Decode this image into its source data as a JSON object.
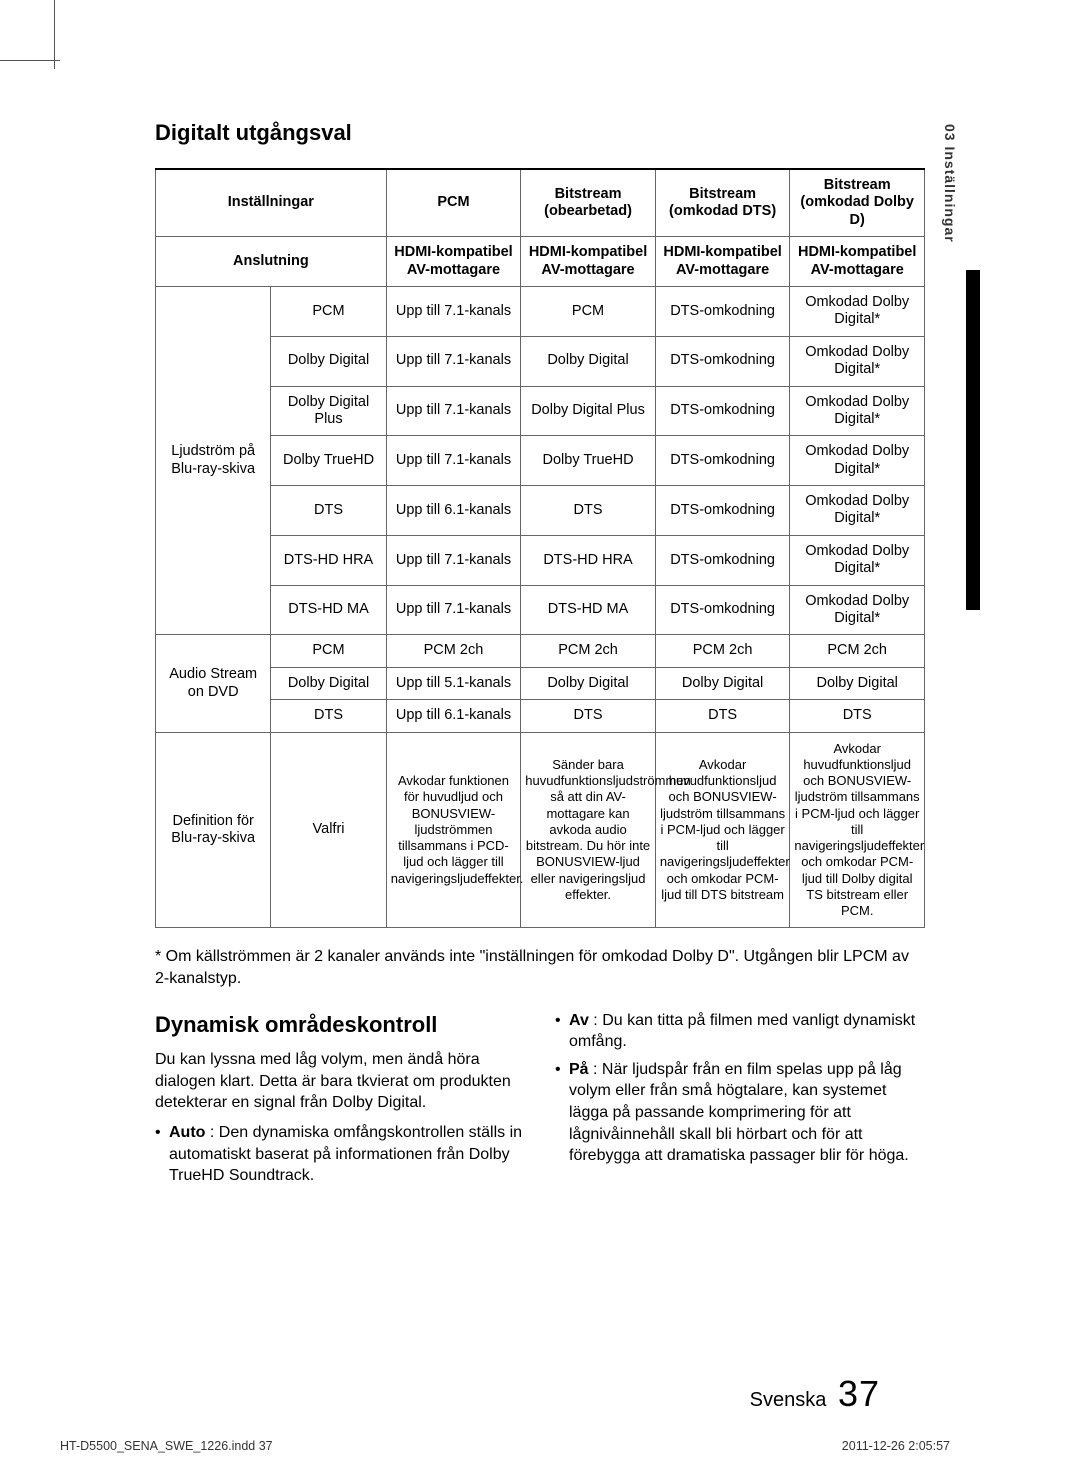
{
  "side_tab": "03   Inställningar",
  "section_title": "Digitalt utgångsval",
  "tbl": {
    "h_col0": "Inställningar",
    "h_col1": "PCM",
    "h_col2": "Bitstream\n(obearbetad)",
    "h_col3": "Bitstream\n(omkodad DTS)",
    "h_col4": "Bitstream\n(omkodad Dolby D)",
    "r_ans": "Anslutning",
    "r_ans1": "HDMI-kompatibel AV-mottagare",
    "r_ans2": "HDMI-kompatibel AV-mottagare",
    "r_ans3": "HDMI-kompatibel AV-mottagare",
    "r_ans4": "HDMI-kompatibel AV-mottagare",
    "grp1": "Ljudström på Blu-ray-skiva",
    "blu": [
      [
        "PCM",
        "Upp till 7.1-kanals",
        "PCM",
        "DTS-omkodning",
        "Omkodad Dolby Digital*"
      ],
      [
        "Dolby Digital",
        "Upp till 7.1-kanals",
        "Dolby Digital",
        "DTS-omkodning",
        "Omkodad Dolby Digital*"
      ],
      [
        "Dolby Digital Plus",
        "Upp till 7.1-kanals",
        "Dolby Digital Plus",
        "DTS-omkodning",
        "Omkodad Dolby Digital*"
      ],
      [
        "Dolby TrueHD",
        "Upp till 7.1-kanals",
        "Dolby TrueHD",
        "DTS-omkodning",
        "Omkodad Dolby Digital*"
      ],
      [
        "DTS",
        "Upp till 6.1-kanals",
        "DTS",
        "DTS-omkodning",
        "Omkodad Dolby Digital*"
      ],
      [
        "DTS-HD HRA",
        "Upp till 7.1-kanals",
        "DTS-HD HRA",
        "DTS-omkodning",
        "Omkodad Dolby Digital*"
      ],
      [
        "DTS-HD MA",
        "Upp till 7.1-kanals",
        "DTS-HD MA",
        "DTS-omkodning",
        "Omkodad Dolby Digital*"
      ]
    ],
    "grp2": "Audio Stream on DVD",
    "dvd": [
      [
        "PCM",
        "PCM 2ch",
        "PCM 2ch",
        "PCM 2ch",
        "PCM 2ch"
      ],
      [
        "Dolby Digital",
        "Upp till 5.1-kanals",
        "Dolby Digital",
        "Dolby Digital",
        "Dolby Digital"
      ],
      [
        "DTS",
        "Upp till 6.1-kanals",
        "DTS",
        "DTS",
        "DTS"
      ]
    ],
    "grp3": "Definition för Blu-ray-skiva",
    "def_c1": "Valfri",
    "def_c2": "Avkodar funktionen för huvudljud och BONUSVIEW-ljudströmmen tillsammans i PCD-ljud och lägger till navigeringsljudeffekter.",
    "def_c3": "Sänder bara huvudfunktionsljudströmmen så att din AV-mottagare kan avkoda audio bitstream.\nDu hör inte BONUSVIEW-ljud eller navigeringsljud effekter.",
    "def_c4": "Avkodar huvudfunktionsljud och BONUSVIEW-ljudström tillsammans i PCM-ljud och lägger till navigeringsljudeffekter och omkodar PCM-ljud till DTS bitstream",
    "def_c5": "Avkodar huvudfunktionsljud och BONUSVIEW-ljudström tillsammans i PCM-ljud och lägger till navigeringsljudeffekter och omkodar PCM-ljud till Dolby digital TS bitstream eller PCM."
  },
  "note_text": "* Om källströmmen är 2 kanaler används inte \"inställningen för omkodad Dolby D\". Utgången blir LPCM av 2-kanalstyp.",
  "dyn_title": "Dynamisk områdeskontroll",
  "dyn_p1": "Du kan lyssna med låg volym, men ändå höra dialogen klart. Detta är bara tkvierat om produkten detekterar en signal från Dolby Digital.",
  "dyn_auto_b": "Auto",
  "dyn_auto": " : Den dynamiska omfångskontrollen ställs in automatiskt baserat på informationen från Dolby TrueHD Soundtrack.",
  "dyn_av_b": "Av",
  "dyn_av": " : Du kan titta på filmen med vanligt dynamiskt omfång.",
  "dyn_pa_b": "På",
  "dyn_pa": " : När ljudspår från en film spelas upp på låg volym eller från små högtalare, kan systemet lägga på passande komprimering för att lågnivåinnehåll skall bli hörbart och för att förebygga att dramatiska passager blir för höga.",
  "page_lang": "Svenska",
  "page_num": "37",
  "imprint_left": "HT-D5500_SENA_SWE_1226.indd   37",
  "imprint_right": "2011-12-26   2:05:57"
}
